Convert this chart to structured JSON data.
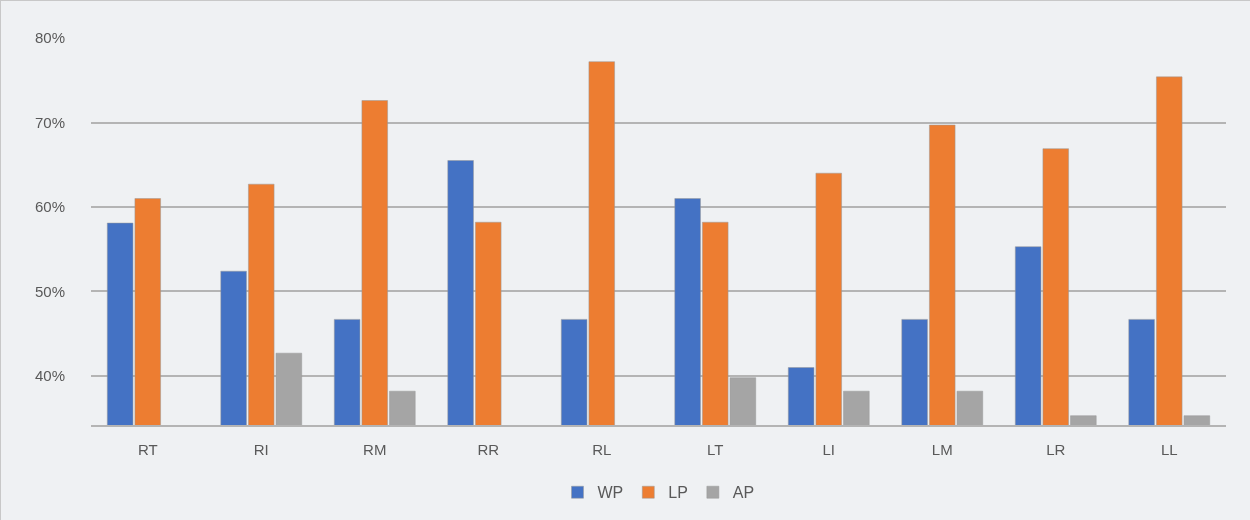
{
  "chart_data": {
    "type": "bar",
    "categories": [
      "RT",
      "RI",
      "RM",
      "RR",
      "RL",
      "LT",
      "LI",
      "LM",
      "LR",
      "LL"
    ],
    "series": [
      {
        "name": "WP",
        "color": "#4472c4",
        "values": [
          58.1,
          52.4,
          46.7,
          65.5,
          46.7,
          61.0,
          41.0,
          46.7,
          55.3,
          46.7
        ]
      },
      {
        "name": "LP",
        "color": "#ed7d31",
        "values": [
          61.0,
          62.7,
          72.6,
          58.2,
          77.2,
          58.2,
          64.0,
          69.7,
          66.9,
          75.4
        ]
      },
      {
        "name": "AP",
        "color": "#a5a5a5",
        "values": [
          null,
          42.7,
          38.2,
          null,
          null,
          39.8,
          38.2,
          38.2,
          35.3,
          35.3
        ]
      }
    ],
    "ylim": [
      34.2,
      80
    ],
    "yticks": [
      {
        "value": 40,
        "label": "40%"
      },
      {
        "value": 50,
        "label": "50%"
      },
      {
        "value": 60,
        "label": "60%"
      },
      {
        "value": 70,
        "label": "70%"
      },
      {
        "value": 80,
        "label": "80%"
      }
    ],
    "grid": "y",
    "legend": "bottom"
  }
}
